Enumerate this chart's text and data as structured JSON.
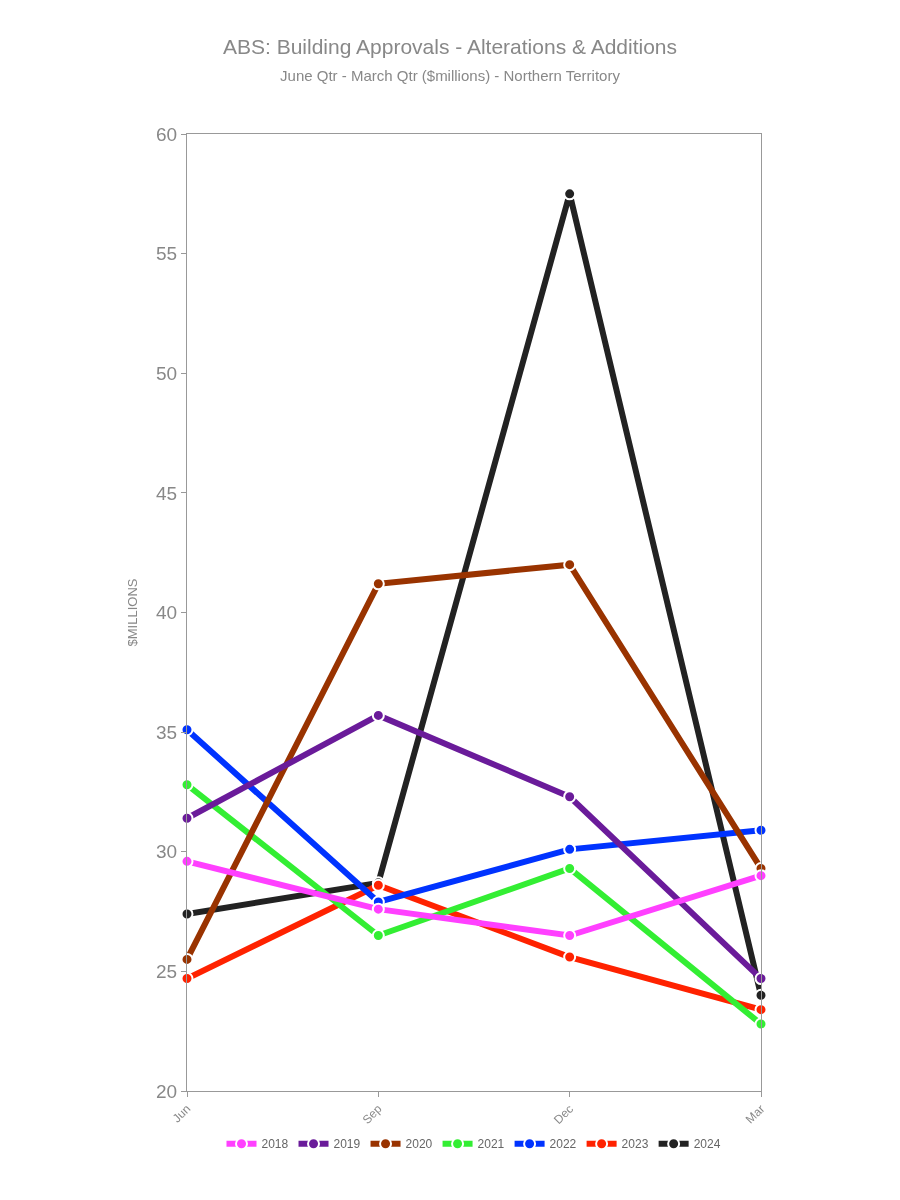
{
  "chart_data": {
    "type": "line",
    "title": "ABS: Building Approvals - Alterations & Additions",
    "subtitle": "June Qtr - March Qtr ($millions) - Northern Territory",
    "ylabel": "$MILLIONS",
    "categories": [
      "Jun",
      "Sep",
      "Dec",
      "Mar"
    ],
    "series": [
      {
        "name": "2018",
        "color": "#ff40ff",
        "values": [
          29.6,
          27.6,
          26.5,
          29.0
        ]
      },
      {
        "name": "2019",
        "color": "#6a1b9a",
        "values": [
          31.4,
          35.7,
          32.3,
          24.7
        ]
      },
      {
        "name": "2020",
        "color": "#993300",
        "values": [
          25.5,
          41.2,
          42.0,
          29.3
        ]
      },
      {
        "name": "2021",
        "color": "#33ee33",
        "values": [
          32.8,
          26.5,
          29.3,
          22.8
        ]
      },
      {
        "name": "2022",
        "color": "#0033ff",
        "values": [
          35.1,
          27.9,
          30.1,
          30.9
        ]
      },
      {
        "name": "2023",
        "color": "#ff2200",
        "values": [
          24.7,
          28.6,
          25.6,
          23.4
        ]
      },
      {
        "name": "2024",
        "color": "#222222",
        "values": [
          27.4,
          28.7,
          57.5,
          24.0
        ]
      }
    ],
    "ylim": [
      20,
      60
    ],
    "yticks": [
      20,
      25,
      30,
      35,
      40,
      45,
      50,
      55,
      60
    ],
    "grid": false,
    "legend": "bottom",
    "marker": "circle",
    "line_style": "solid"
  }
}
